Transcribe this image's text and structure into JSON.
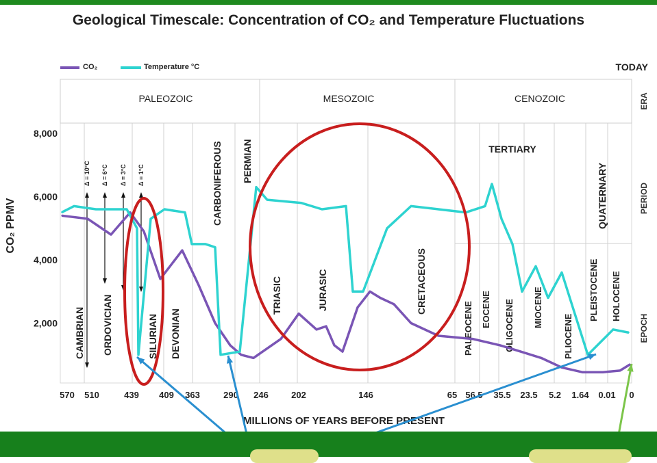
{
  "title": "Geological Timescale: Concentration of CO₂ and Temperature Fluctuations",
  "colors": {
    "co2": "#7a55b5",
    "temp": "#2ed3d0",
    "circle": "#c81e1e",
    "arrow": "#2a8fd0",
    "arrow_green": "#7cc54a",
    "band": "#17801c"
  },
  "chart_data": {
    "type": "line",
    "title": "Geological Timescale: Concentration of CO₂ and Temperature Fluctuations",
    "xlabel": "MILLIONS OF YEARS BEFORE PRESENT",
    "ylabel": "CO₂ PPMV",
    "today_label": "TODAY",
    "x_ticks": [
      "570",
      "510",
      "439",
      "409",
      "363",
      "290",
      "246",
      "202",
      "146",
      "65",
      "56.5",
      "35.5",
      "23.5",
      "5.2",
      "1.64",
      "0.01",
      "0"
    ],
    "y_ticks": [
      "8,000",
      "6,000",
      "4,000",
      "2,000"
    ],
    "ylim": [
      0,
      8000
    ],
    "legend": [
      {
        "name": "CO₂",
        "color": "#7a55b5"
      },
      {
        "name": "Temperature °C",
        "color": "#2ed3d0"
      }
    ],
    "legend_position": "top-left",
    "row_labels": [
      "ERA",
      "PERIOD",
      "EPOCH"
    ],
    "eras": [
      "PALEOZOIC",
      "MESOZOIC",
      "CENOZOIC"
    ],
    "periods": [
      "CAMBRIAN",
      "ORDOVICIAN",
      "SILURIAN",
      "DEVONIAN",
      "CARBONIFEROUS",
      "PERMIAN",
      "TRIASIC",
      "JURASIC",
      "CRETACEOUS",
      "TERTIARY",
      "QUATERNARY"
    ],
    "epochs": [
      "PALEOCENE",
      "EOCENE",
      "OLIGOCENE",
      "MIOCENE",
      "PLIOCENE",
      "PLEISTOCENE",
      "HOLOCENE"
    ],
    "temp_deltas": [
      "Δ = 10°C",
      "Δ = 6°C",
      "Δ = 3°C",
      "Δ = 1°C"
    ],
    "series": [
      {
        "name": "CO₂",
        "values": [
          5400,
          5300,
          4800,
          5500,
          4900,
          3400,
          4300,
          3200,
          2000,
          1300,
          1000,
          900,
          1500,
          2300,
          1800,
          1900,
          1300,
          1100,
          2500,
          3000,
          2800,
          2600,
          2000,
          1600,
          1500,
          1300,
          1100,
          900,
          600,
          450,
          450,
          500,
          700
        ]
      },
      {
        "name": "Temperature °C",
        "values": [
          5500,
          5700,
          5600,
          5600,
          5600,
          5000,
          1000,
          5300,
          5600,
          5500,
          4500,
          4500,
          4400,
          1000,
          1100,
          6300,
          5900,
          5800,
          5600,
          5700,
          3000,
          3000,
          5000,
          5700,
          5600,
          5500,
          5700,
          6400,
          5300,
          4500,
          3000,
          3800,
          2800,
          3600,
          1000,
          1800,
          1700
        ]
      }
    ]
  }
}
